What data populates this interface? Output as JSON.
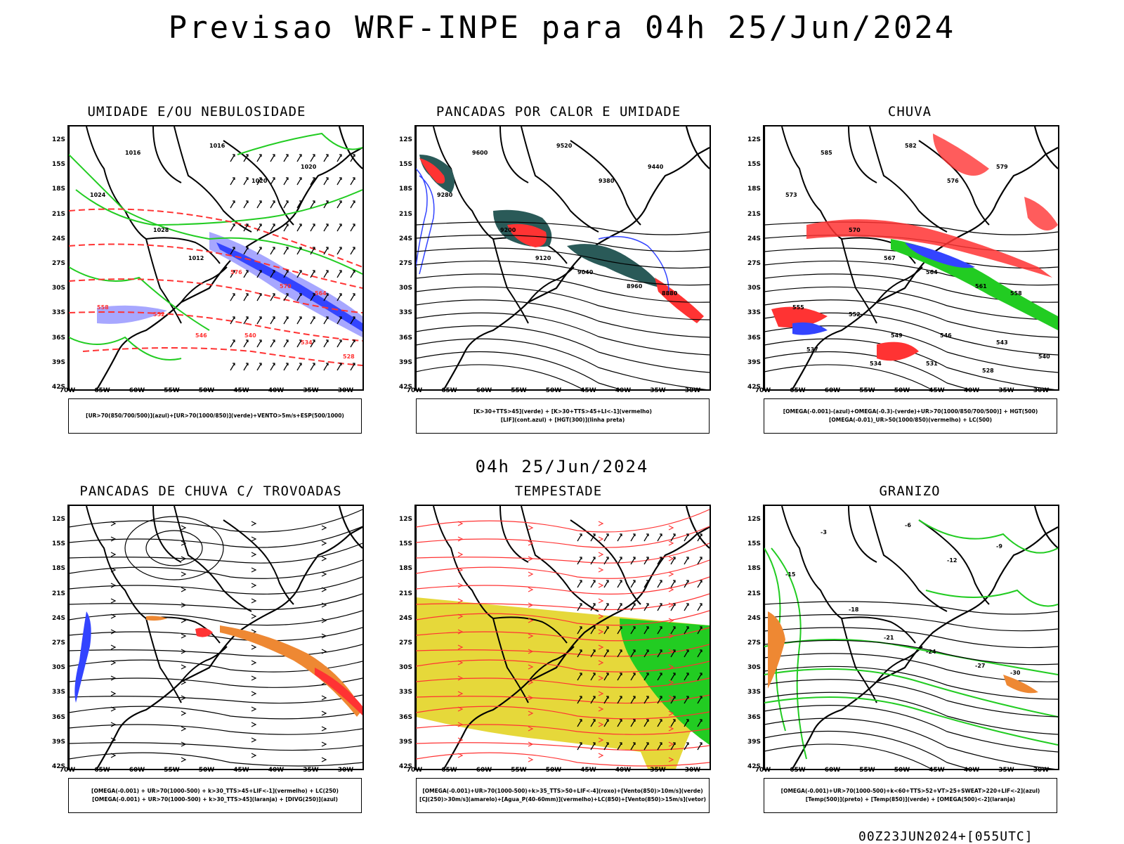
{
  "title": "Previsao WRF-INPE  para 04h 25/Jun/2024",
  "mid_time": "04h 25/Jun/2024",
  "footer": "00Z23JUN2024+[055UTC]",
  "axes": {
    "y_labels": [
      "12S",
      "15S",
      "18S",
      "21S",
      "24S",
      "27S",
      "30S",
      "33S",
      "36S",
      "39S",
      "42S"
    ],
    "x_labels": [
      "70W",
      "65W",
      "60W",
      "55W",
      "50W",
      "45W",
      "40W",
      "35W",
      "30W"
    ]
  },
  "panels": [
    {
      "title": "UMIDADE E/OU NEBULOSIDADE",
      "legend": [
        "[UR>70(850/700/500)](azul)+[UR>70(1000/850)](verde)+VENTO>5m/s+ESP(500/1000)"
      ],
      "contour_labels": [
        "1016",
        "1016",
        "1020",
        "1020",
        "1024",
        "1028",
        "1012",
        "576",
        "570",
        "564",
        "558",
        "552",
        "546",
        "540",
        "534",
        "528"
      ]
    },
    {
      "title": "PANCADAS POR CALOR E UMIDADE",
      "legend": [
        "[K>30+TTS>45](verde) + [K>30+TTS>45+LI<-1](vermelho)",
        "[LIF](cont.azul) + [HGT(300)](linha preta)"
      ],
      "contour_labels": [
        "9600",
        "9520",
        "9440",
        "9380",
        "9280",
        "9200",
        "9120",
        "9040",
        "8960",
        "8880"
      ]
    },
    {
      "title": "CHUVA",
      "legend": [
        "[OMEGA(-0.001)-(azul)+OMEGA(-0.3)-(verde)+UR>70(1000/850/700/500)] + HGT(500)",
        "[OMEGA(-0.01)_UR>50(1000/850)(vermelho) + LC(500)"
      ],
      "contour_labels": [
        "585",
        "582",
        "579",
        "576",
        "573",
        "570",
        "567",
        "564",
        "561",
        "558",
        "555",
        "552",
        "549",
        "546",
        "543",
        "540",
        "537",
        "534",
        "531",
        "528"
      ]
    },
    {
      "title": "PANCADAS DE CHUVA C/ TROVOADAS",
      "legend": [
        "[OMEGA(-0.001) + UR>70(1000-500) + k>30_TTS>45+LIF<-1](vermelho) + LC(250)",
        "[OMEGA(-0.001) + UR>70(1000-500) + k>30_TTS>45](laranja) + [DIVG(250)](azul)"
      ],
      "contour_labels": []
    },
    {
      "title": "TEMPESTADE",
      "legend": [
        "[OMEGA(-0.001)+UR>70(1000-500)+k>35_TTS>50+LIF<-4](roxo)+[Vento(850)>10m/s](verde)",
        "[CJ(250)>30m/s](amarelo)+[Agua_P(40-60mm)](vermelho)+LC(850)+[Vento(850)>15m/s](vetor)"
      ],
      "contour_labels": []
    },
    {
      "title": "GRANIZO",
      "legend": [
        "[OMEGA(-0.001)+UR>70(1000-500)+k<60+TTS>52+VT>25+SWEAT>220+LIF<-2](azul)",
        "[Temp(500)](preto) + [Temp(850)](verde) + [OMEGA(500)<-2](laranja)"
      ],
      "contour_labels": [
        "-3",
        "-6",
        "-9",
        "-12",
        "-15",
        "-18",
        "-21",
        "-24",
        "-27",
        "-30"
      ]
    }
  ],
  "colors": {
    "red": "#ff3333",
    "green": "#22cc22",
    "blue": "#3344ff",
    "lightblue": "#a7a7ff",
    "darkteal": "#2a5a58",
    "yellow": "#e6d83a",
    "orange": "#ee8833",
    "black": "#000000"
  }
}
